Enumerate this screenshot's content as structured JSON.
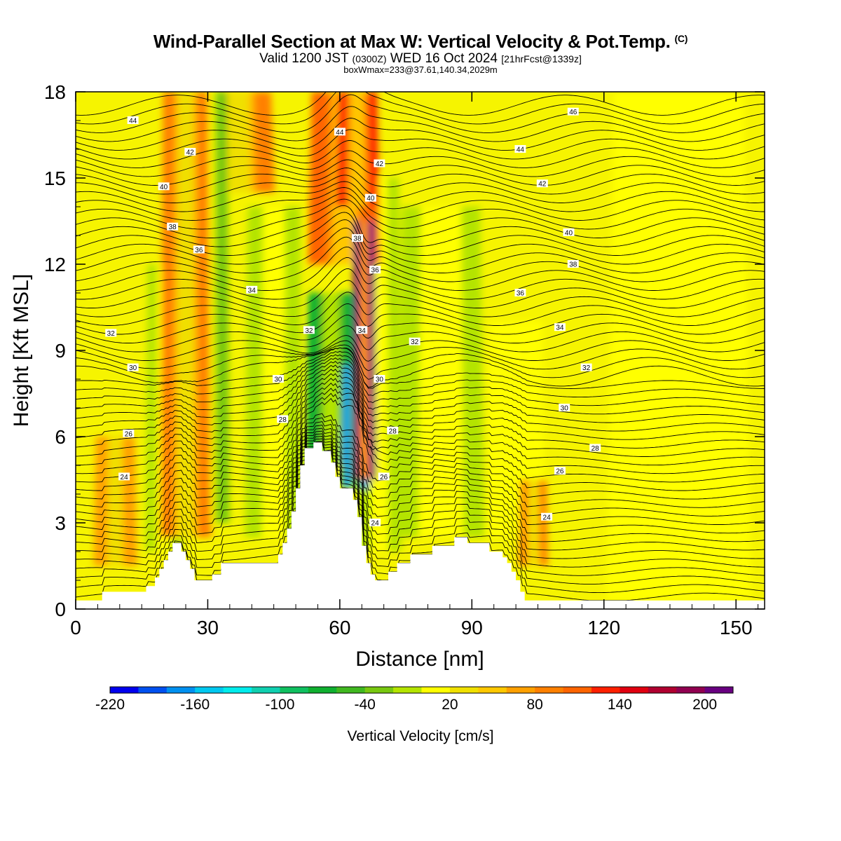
{
  "title": {
    "main": "Wind-Parallel Section at Max W: Vertical Velocity & Pot.Temp.",
    "copyright": "(C)",
    "valid_prefix": "Valid 1200 JST",
    "valid_utc": "(0300Z)",
    "valid_date": "WED 16 Oct 2024",
    "forecast": "[21hrFcst@1339z]",
    "box_info": "boxWmax=233@37.61,140.34,2029m"
  },
  "chart_data": {
    "type": "heatmap",
    "xlabel": "Distance [nm]",
    "ylabel": "Height [Kft MSL]",
    "xlim": [
      0,
      156.5
    ],
    "ylim": [
      0,
      18
    ],
    "x_ticks": [
      0,
      30,
      60,
      90,
      120,
      150
    ],
    "y_ticks": [
      0,
      3,
      6,
      9,
      12,
      15,
      18
    ],
    "colorbar": {
      "label": "Vertical Velocity [cm/s]",
      "tick_labels": [
        -220,
        -160,
        -100,
        -40,
        20,
        80,
        140,
        200
      ],
      "colors": [
        "#0000ee",
        "#0050f0",
        "#0090f0",
        "#00c8f0",
        "#00ecec",
        "#10d0b0",
        "#10c060",
        "#10b030",
        "#40b820",
        "#78c810",
        "#b4e400",
        "#ffff00",
        "#f0e000",
        "#ffc800",
        "#ffa000",
        "#ff8000",
        "#ff6400",
        "#ff2000",
        "#e00010",
        "#b00030",
        "#900050",
        "#680080"
      ]
    },
    "terrain_kft": [
      [
        0,
        0.3
      ],
      [
        6,
        0.3
      ],
      [
        6,
        0.6
      ],
      [
        16,
        0.6
      ],
      [
        16,
        0.8
      ],
      [
        18,
        0.8
      ],
      [
        18,
        1.1
      ],
      [
        19,
        1.1
      ],
      [
        19,
        1.4
      ],
      [
        20,
        1.4
      ],
      [
        20,
        1.7
      ],
      [
        21,
        1.7
      ],
      [
        21,
        2.0
      ],
      [
        22,
        2.0
      ],
      [
        22,
        2.3
      ],
      [
        24,
        2.3
      ],
      [
        24,
        2.0
      ],
      [
        25,
        2.0
      ],
      [
        25,
        1.7
      ],
      [
        26,
        1.7
      ],
      [
        26,
        1.4
      ],
      [
        27,
        1.4
      ],
      [
        27,
        1.0
      ],
      [
        31,
        1.0
      ],
      [
        31,
        1.2
      ],
      [
        33,
        1.2
      ],
      [
        33,
        1.6
      ],
      [
        35,
        1.6
      ],
      [
        35,
        1.6
      ],
      [
        46,
        1.6
      ],
      [
        46,
        1.9
      ],
      [
        47,
        1.9
      ],
      [
        47,
        2.3
      ],
      [
        48,
        2.3
      ],
      [
        48,
        2.8
      ],
      [
        49,
        2.8
      ],
      [
        49,
        3.4
      ],
      [
        50,
        3.4
      ],
      [
        50,
        4.2
      ],
      [
        51,
        4.2
      ],
      [
        51,
        5.0
      ],
      [
        52,
        5.0
      ],
      [
        52,
        5.6
      ],
      [
        54,
        5.6
      ],
      [
        54,
        5.8
      ],
      [
        56,
        5.8
      ],
      [
        56,
        5.5
      ],
      [
        58,
        5.5
      ],
      [
        58,
        5.1
      ],
      [
        59,
        5.1
      ],
      [
        59,
        4.6
      ],
      [
        60,
        4.6
      ],
      [
        60,
        4.2
      ],
      [
        63,
        4.2
      ],
      [
        63,
        3.8
      ],
      [
        64,
        3.8
      ],
      [
        64,
        3.2
      ],
      [
        65,
        3.2
      ],
      [
        65,
        2.2
      ],
      [
        66,
        2.2
      ],
      [
        66,
        1.6
      ],
      [
        67,
        1.6
      ],
      [
        67,
        1.2
      ],
      [
        68,
        1.2
      ],
      [
        68,
        1.0
      ],
      [
        71,
        1.0
      ],
      [
        71,
        1.3
      ],
      [
        73,
        1.3
      ],
      [
        73,
        1.6
      ],
      [
        76,
        1.6
      ],
      [
        76,
        1.9
      ],
      [
        81,
        1.9
      ],
      [
        81,
        2.2
      ],
      [
        86,
        2.2
      ],
      [
        86,
        2.5
      ],
      [
        89,
        2.5
      ],
      [
        89,
        2.3
      ],
      [
        94,
        2.3
      ],
      [
        94,
        2.0
      ],
      [
        97,
        2.0
      ],
      [
        97,
        1.8
      ],
      [
        98,
        1.8
      ],
      [
        98,
        1.6
      ],
      [
        99,
        1.6
      ],
      [
        99,
        1.3
      ],
      [
        100,
        1.3
      ],
      [
        100,
        1.0
      ],
      [
        101,
        1.0
      ],
      [
        101,
        0.6
      ],
      [
        102,
        0.6
      ],
      [
        102,
        0.3
      ],
      [
        156.5,
        0.3
      ]
    ],
    "w_features": [
      {
        "x": 65.5,
        "z0": 4.5,
        "z1": 13.5,
        "w": 233,
        "width_nm": 1.6
      },
      {
        "x": 63.5,
        "z0": 4.2,
        "z1": 8.5,
        "w": -200,
        "width_nm": 1.8
      },
      {
        "x": 58,
        "z0": 5.0,
        "z1": 11.0,
        "w": -100,
        "width_nm": 3.5
      },
      {
        "x": 61,
        "z0": 12.0,
        "z1": 18.0,
        "w": 80,
        "width_nm": 5
      },
      {
        "x": 64,
        "z0": 14.0,
        "z1": 18.0,
        "w": 100,
        "width_nm": 3
      },
      {
        "x": 25,
        "z0": 2.5,
        "z1": 18.0,
        "w": 70,
        "width_nm": 3.5
      },
      {
        "x": 37,
        "z0": 14.5,
        "z1": 18.0,
        "w": 60,
        "width_nm": 5
      },
      {
        "x": 9,
        "z0": 1.5,
        "z1": 6.0,
        "w": 55,
        "width_nm": 3
      },
      {
        "x": 104,
        "z0": 1.5,
        "z1": 4.5,
        "w": 65,
        "width_nm": 2
      },
      {
        "x": 30,
        "z0": 3.0,
        "z1": 18.0,
        "w": -60,
        "width_nm": 3
      },
      {
        "x": 20,
        "z0": 2.0,
        "z1": 12.0,
        "w": -40,
        "width_nm": 2.5
      },
      {
        "x": 45,
        "z0": 2.5,
        "z1": 14.0,
        "w": -40,
        "width_nm": 4
      },
      {
        "x": 69,
        "z0": 2.0,
        "z1": 15.0,
        "w": -35,
        "width_nm": 3
      },
      {
        "x": 83,
        "z0": 2.5,
        "z1": 14.0,
        "w": -25,
        "width_nm": 6
      },
      {
        "x": 100,
        "z0": 2.5,
        "z1": 10.0,
        "w": -20,
        "width_nm": 4
      },
      {
        "x": 137,
        "z0": 0.3,
        "z1": 18.0,
        "w": -20,
        "width_nm": 10
      }
    ],
    "theta_contours": [
      {
        "label": "24",
        "labels_at": [
          [
            11,
            4.6
          ],
          [
            68,
            3.0
          ],
          [
            107,
            3.2
          ]
        ]
      },
      {
        "label": "26",
        "labels_at": [
          [
            12,
            6.1
          ],
          [
            70,
            4.6
          ],
          [
            110,
            4.8
          ]
        ]
      },
      {
        "label": "28",
        "labels_at": [
          [
            47,
            6.6
          ],
          [
            72,
            6.2
          ],
          [
            118,
            5.6
          ]
        ]
      },
      {
        "label": "30",
        "labels_at": [
          [
            13,
            8.4
          ],
          [
            46,
            8.0
          ],
          [
            69,
            8.0
          ],
          [
            111,
            7.0
          ]
        ]
      },
      {
        "label": "32",
        "labels_at": [
          [
            8,
            9.6
          ],
          [
            53,
            9.7
          ],
          [
            77,
            9.3
          ],
          [
            116,
            8.4
          ]
        ]
      },
      {
        "label": "34",
        "labels_at": [
          [
            40,
            11.1
          ],
          [
            65,
            9.7
          ],
          [
            110,
            9.8
          ]
        ]
      },
      {
        "label": "36",
        "labels_at": [
          [
            28,
            12.5
          ],
          [
            68,
            11.8
          ],
          [
            101,
            11.0
          ]
        ]
      },
      {
        "label": "38",
        "labels_at": [
          [
            22,
            13.3
          ],
          [
            64,
            12.9
          ],
          [
            113,
            12.0
          ]
        ]
      },
      {
        "label": "40",
        "labels_at": [
          [
            20,
            14.7
          ],
          [
            67,
            14.3
          ],
          [
            112,
            13.1
          ]
        ]
      },
      {
        "label": "42",
        "labels_at": [
          [
            26,
            15.9
          ],
          [
            69,
            15.5
          ],
          [
            106,
            14.8
          ]
        ]
      },
      {
        "label": "44",
        "labels_at": [
          [
            13,
            17.0
          ],
          [
            60,
            16.6
          ],
          [
            101,
            16.0
          ]
        ]
      },
      {
        "label": "46",
        "labels_at": [
          [
            113,
            17.3
          ]
        ]
      }
    ]
  }
}
